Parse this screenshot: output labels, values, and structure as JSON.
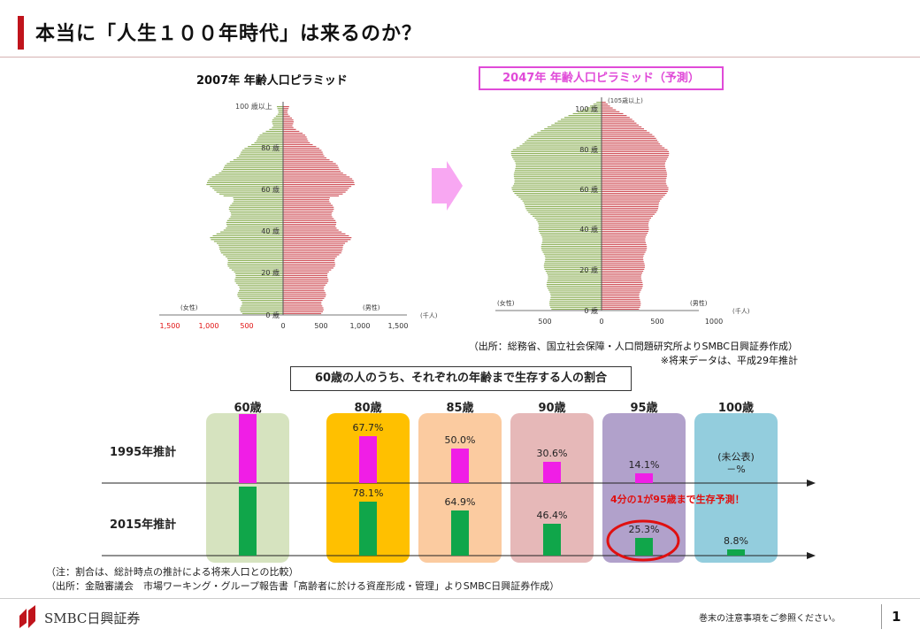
{
  "header": {
    "title": "本当に「人生１００年時代」は来るのか？"
  },
  "pyramids": {
    "left_title": "2007年 年齢人口ピラミッド",
    "right_title": "2047年 年齢人口ピラミッド（予測）",
    "female_label": "(女性)",
    "male_label": "(男性)",
    "unit": "(千人)",
    "left_top_label": "100 歳以上",
    "right_top_label": "(105歳以上)",
    "left_age_ticks": [
      "80 歳",
      "60 歳",
      "40 歳",
      "20 歳",
      "0 歳"
    ],
    "right_age_ticks": [
      "100 歳",
      "80 歳",
      "60 歳",
      "40 歳",
      "20 歳",
      "0 歳"
    ],
    "left_x_ticks_female": [
      "1,500",
      "1,000",
      "500"
    ],
    "left_x_ticks_male": [
      "0",
      "500",
      "1,000",
      "1,500"
    ],
    "right_x_ticks": [
      "500",
      "0",
      "500",
      "1000"
    ],
    "colors": {
      "female": "#8fb15a",
      "male": "#d0525a",
      "female_ticks": "#e01010"
    }
  },
  "sources": {
    "pyramid_source": "（出所：総務省、国立社会保障・人口問題研究所よりSMBC日興証券作成）",
    "pyramid_note": "※将来データは、平成29年推計",
    "chart_note": "（注：割合は、総計時点の推計による将来人口との比較）",
    "chart_source": "（出所：金融審議会　市場ワーキング・グループ報告書「高齢者に於ける資産形成・管理」よりSMBC日興証券作成）"
  },
  "section_title": "60歳の人のうち、それぞれの年齢まで生存する人の割合",
  "chart_data": {
    "type": "bar",
    "categories": [
      "60歳",
      "80歳",
      "85歳",
      "90歳",
      "95歳",
      "100歳"
    ],
    "series": [
      {
        "name": "1995年推計",
        "values": [
          100,
          67.7,
          50.0,
          30.6,
          14.1,
          null
        ],
        "labels": [
          "",
          "67.7%",
          "50.0%",
          "30.6%",
          "14.1%",
          "(未公表)\n－%"
        ],
        "color": "#f01ee6"
      },
      {
        "name": "2015年推計",
        "values": [
          100,
          78.1,
          64.9,
          46.4,
          25.3,
          8.8
        ],
        "labels": [
          "",
          "78.1%",
          "64.9%",
          "46.4%",
          "25.3%",
          "8.8%"
        ],
        "color": "#10a64a"
      }
    ],
    "column_colors": [
      "#d6e3bf",
      "#ffc000",
      "#fbcba0",
      "#e6b8b8",
      "#b1a1cb",
      "#93cddd"
    ],
    "ylim": [
      0,
      100
    ],
    "annotation": "4分の1が95歳まで生存予測！"
  },
  "footer": {
    "brand": "SMBC日興証券",
    "disclaimer": "巻末の注意事項をご参照ください。",
    "page": "1"
  }
}
